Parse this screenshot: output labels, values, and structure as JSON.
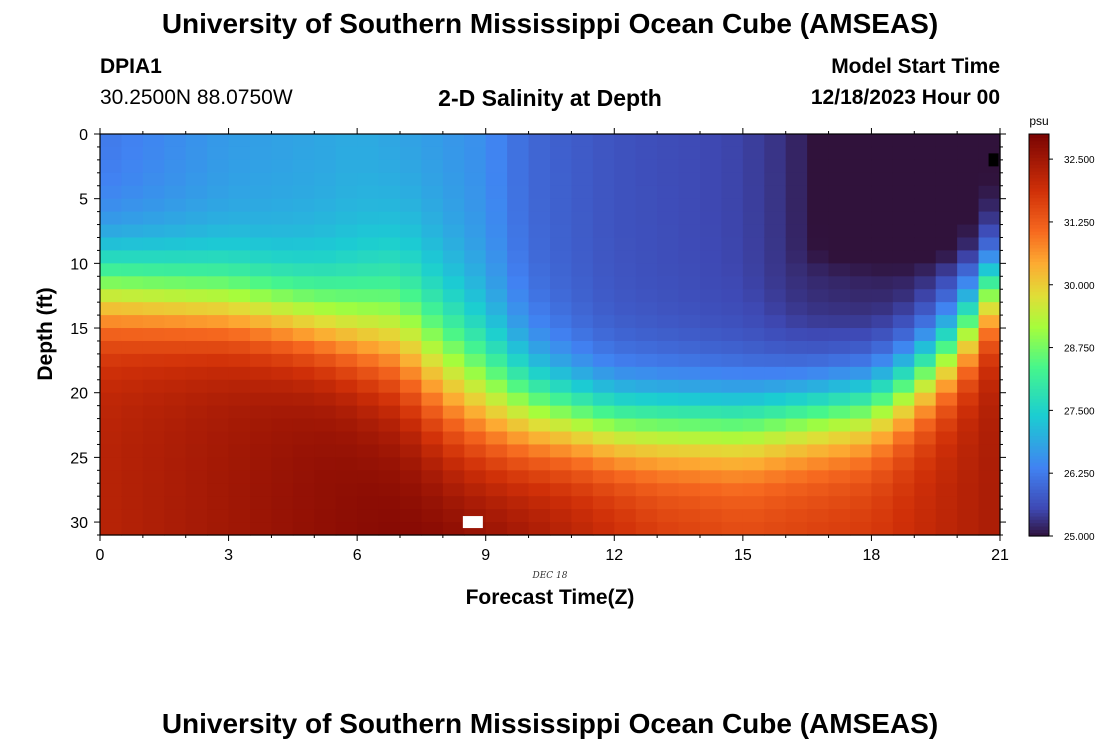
{
  "header": {
    "title_top": "University of Southern Mississippi Ocean Cube (AMSEAS)",
    "station_id": "DPIA1",
    "station_coords": "30.2500N  88.0750W",
    "plot_subtitle": "2-D Salinity at Depth",
    "model_start_label": "Model Start Time",
    "model_start_value": "12/18/2023 Hour 00"
  },
  "footer": {
    "title_bottom": "University of Southern Mississippi Ocean Cube (AMSEAS)"
  },
  "chart_data": {
    "type": "heatmap",
    "title": "2-D Salinity at Depth",
    "xlabel": "Forecast Time(Z)",
    "ylabel": "Depth (ft)",
    "x_date_label": "DEC 18",
    "xlim": [
      0,
      21
    ],
    "ylim": [
      0,
      31
    ],
    "x_ticks": [
      0,
      3,
      6,
      9,
      12,
      15,
      18,
      21
    ],
    "y_ticks": [
      0,
      5,
      10,
      15,
      20,
      25,
      30
    ],
    "colorbar": {
      "unit": "psu",
      "min": 25.0,
      "max": 33.0,
      "tick_labels": [
        "25.000",
        "26.250",
        "27.500",
        "28.750",
        "30.000",
        "31.250",
        "32.500"
      ],
      "tick_values": [
        25.0,
        26.25,
        27.5,
        28.75,
        30.0,
        31.25,
        32.5
      ]
    },
    "field_description": {
      "halocline_depth_ft_by_hour": [
        [
          0,
          12.0
        ],
        [
          3,
          13.0
        ],
        [
          6,
          15.0
        ],
        [
          7,
          15.5
        ],
        [
          8,
          18.5
        ],
        [
          9,
          20.5
        ],
        [
          10,
          21.5
        ],
        [
          12,
          22.5
        ],
        [
          15,
          22.5
        ],
        [
          18,
          21.0
        ],
        [
          19,
          19.0
        ],
        [
          20,
          16.0
        ],
        [
          21,
          11.0
        ]
      ],
      "deep_salinity_psu_by_hour": [
        [
          0,
          32.2
        ],
        [
          4,
          32.6
        ],
        [
          6,
          32.8
        ],
        [
          8,
          33.0
        ],
        [
          9,
          32.9
        ],
        [
          11,
          32.3
        ],
        [
          13,
          31.8
        ],
        [
          15,
          31.6
        ],
        [
          18,
          31.8
        ],
        [
          21,
          32.4
        ]
      ],
      "surface_salinity_psu_by_hour": [
        [
          0,
          26.2
        ],
        [
          3,
          26.7
        ],
        [
          6,
          26.9
        ],
        [
          9,
          26.5
        ],
        [
          10,
          26.0
        ],
        [
          12,
          25.7
        ],
        [
          15,
          25.5
        ],
        [
          16.5,
          25.2
        ],
        [
          19,
          25.0
        ],
        [
          21,
          25.2
        ]
      ]
    },
    "markers": [
      {
        "name": "missing-cell",
        "color": "#ffffff",
        "x_hours": 8.7,
        "depth_ft": 30.0
      },
      {
        "name": "land-cell",
        "color": "#000000",
        "x_hours": 20.85,
        "depth_ft": 2.0
      }
    ]
  }
}
